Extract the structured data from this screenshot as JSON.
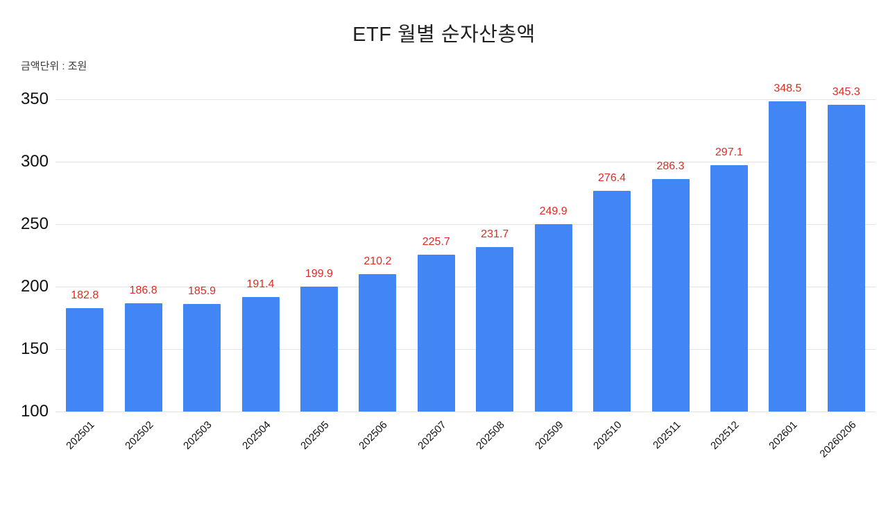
{
  "page": {
    "background": "#ffffff"
  },
  "chart_data": {
    "type": "bar",
    "title": "ETF 월별 순자산총액",
    "subtitle": "금액단위 : 조원",
    "categories": [
      "202501",
      "202502",
      "202503",
      "202504",
      "202505",
      "202506",
      "202507",
      "202508",
      "202509",
      "202510",
      "202511",
      "202512",
      "202601",
      "20260206"
    ],
    "values": [
      182.8,
      186.8,
      185.9,
      191.4,
      199.9,
      210.2,
      225.7,
      231.7,
      249.9,
      276.4,
      286.3,
      297.1,
      348.5,
      345.3
    ],
    "value_labels": [
      "182.8",
      "186.8",
      "185.9",
      "191.4",
      "199.9",
      "210.2",
      "225.7",
      "231.7",
      "249.9",
      "276.4",
      "286.3",
      "297.1",
      "348.5",
      "345.3"
    ],
    "xlabel": "",
    "ylabel": "",
    "ylim": [
      100,
      350
    ],
    "yticks": [
      100,
      150,
      200,
      250,
      300,
      350
    ],
    "grid": true,
    "legend": "none",
    "x_label_rotation": -45,
    "bar_color": "#4285f4",
    "value_label_color": "#dc2d23",
    "axis_text_color": "#111111",
    "grid_color": "#e4e4e4"
  }
}
